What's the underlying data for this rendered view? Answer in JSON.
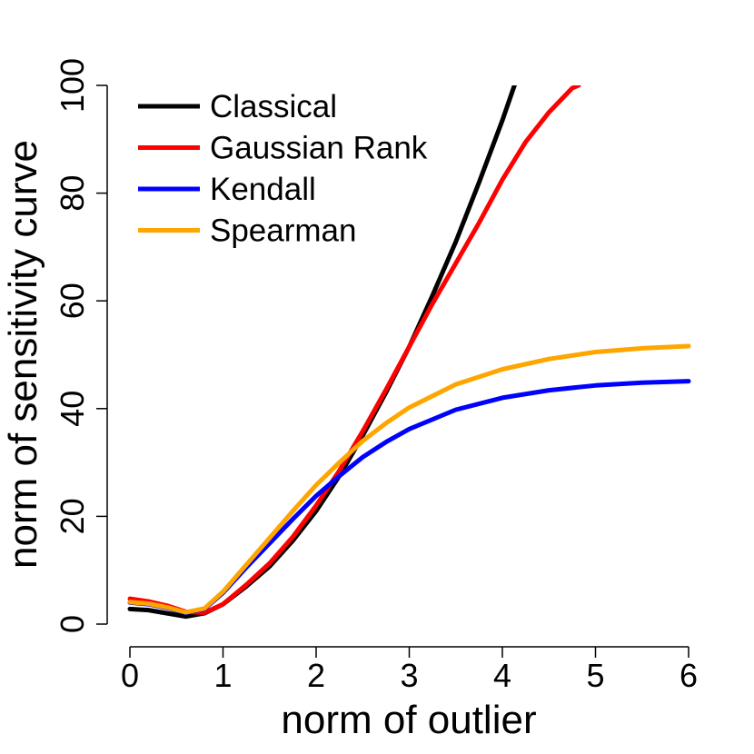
{
  "chart_data": {
    "type": "line",
    "xlabel": "norm of outlier",
    "ylabel": "norm of sensitivity curve",
    "xlim": [
      0,
      6
    ],
    "ylim": [
      0,
      100
    ],
    "x_ticks": [
      0,
      1,
      2,
      3,
      4,
      5,
      6
    ],
    "y_ticks": [
      0,
      20,
      40,
      60,
      80,
      100
    ],
    "x_tick_labels": [
      "0",
      "1",
      "2",
      "3",
      "4",
      "5",
      "6"
    ],
    "y_tick_labels": [
      "0",
      "20",
      "40",
      "60",
      "80",
      "100"
    ],
    "grid": false,
    "legend_position": "top-left",
    "series": [
      {
        "name": "Classical",
        "color": "#000000",
        "points": [
          [
            0,
            2.8
          ],
          [
            0.2,
            2.6
          ],
          [
            0.4,
            2.0
          ],
          [
            0.6,
            1.4
          ],
          [
            0.8,
            2.0
          ],
          [
            1.0,
            3.7
          ],
          [
            1.25,
            7.0
          ],
          [
            1.5,
            10.7
          ],
          [
            1.75,
            15.5
          ],
          [
            2.0,
            21.0
          ],
          [
            2.25,
            27.5
          ],
          [
            2.5,
            35.0
          ],
          [
            2.75,
            43.0
          ],
          [
            3.0,
            51.5
          ],
          [
            3.25,
            61.0
          ],
          [
            3.5,
            71.0
          ],
          [
            3.75,
            82.0
          ],
          [
            4.0,
            93.5
          ],
          [
            4.13,
            100
          ]
        ]
      },
      {
        "name": "Gaussian Rank",
        "color": "#ff0000",
        "points": [
          [
            0,
            4.7
          ],
          [
            0.2,
            4.2
          ],
          [
            0.4,
            3.4
          ],
          [
            0.6,
            2.3
          ],
          [
            0.8,
            2.1
          ],
          [
            1.0,
            3.7
          ],
          [
            1.25,
            7.3
          ],
          [
            1.5,
            11.3
          ],
          [
            1.75,
            16.2
          ],
          [
            2.0,
            22.0
          ],
          [
            2.25,
            28.5
          ],
          [
            2.5,
            35.8
          ],
          [
            2.75,
            43.5
          ],
          [
            3.0,
            51.5
          ],
          [
            3.25,
            59.5
          ],
          [
            3.5,
            67.0
          ],
          [
            3.75,
            74.5
          ],
          [
            4.0,
            82.5
          ],
          [
            4.25,
            89.5
          ],
          [
            4.5,
            95.0
          ],
          [
            4.75,
            99.5
          ],
          [
            4.82,
            100
          ]
        ]
      },
      {
        "name": "Kendall",
        "color": "#0000ff",
        "points": [
          [
            0,
            4.0
          ],
          [
            0.2,
            3.7
          ],
          [
            0.4,
            3.0
          ],
          [
            0.6,
            2.1
          ],
          [
            0.8,
            2.8
          ],
          [
            1.0,
            5.8
          ],
          [
            1.25,
            10.5
          ],
          [
            1.5,
            15.0
          ],
          [
            1.75,
            19.5
          ],
          [
            2.0,
            23.8
          ],
          [
            2.25,
            27.5
          ],
          [
            2.5,
            31.0
          ],
          [
            2.75,
            33.8
          ],
          [
            3.0,
            36.2
          ],
          [
            3.5,
            39.8
          ],
          [
            4.0,
            42.0
          ],
          [
            4.5,
            43.4
          ],
          [
            5.0,
            44.3
          ],
          [
            5.5,
            44.8
          ],
          [
            6.0,
            45.1
          ]
        ]
      },
      {
        "name": "Spearman",
        "color": "#ffa500",
        "points": [
          [
            0,
            4.1
          ],
          [
            0.2,
            3.8
          ],
          [
            0.4,
            3.1
          ],
          [
            0.6,
            2.2
          ],
          [
            0.8,
            2.9
          ],
          [
            1.0,
            6.0
          ],
          [
            1.25,
            11.0
          ],
          [
            1.5,
            16.0
          ],
          [
            1.75,
            21.0
          ],
          [
            2.0,
            25.8
          ],
          [
            2.25,
            30.0
          ],
          [
            2.5,
            34.0
          ],
          [
            2.75,
            37.3
          ],
          [
            3.0,
            40.2
          ],
          [
            3.5,
            44.5
          ],
          [
            4.0,
            47.3
          ],
          [
            4.5,
            49.2
          ],
          [
            5.0,
            50.5
          ],
          [
            5.5,
            51.2
          ],
          [
            6.0,
            51.6
          ]
        ]
      }
    ]
  }
}
